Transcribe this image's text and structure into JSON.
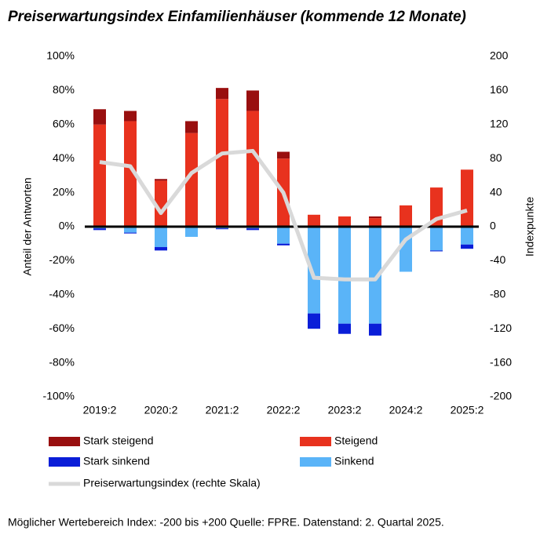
{
  "chart_data": {
    "type": "bar",
    "title": "Preiserwartungsindex Einfamilienhäuser (kommende 12 Monate)",
    "ylabel": "Anteil der Antworten",
    "y2label": "Indexpunkte",
    "note": "Möglicher Wertebereich Index: -200 bis +200 Quelle: FPRE. Datenstand: 2. Quartal 2025.",
    "categories": [
      "2019:2",
      null,
      "2020:2",
      null,
      "2021:2",
      null,
      "2022:2",
      null,
      "2023:2",
      null,
      "2024:2",
      null,
      "2025:2"
    ],
    "series": [
      {
        "name": "Stark steigend",
        "color": "#990f0f",
        "values": [
          9,
          6,
          1,
          7,
          6.5,
          12,
          4,
          0,
          0,
          1,
          0,
          0,
          0
        ]
      },
      {
        "name": "Steigend",
        "color": "#e8321e",
        "values": [
          60,
          62,
          27,
          55,
          75,
          68,
          40,
          7,
          6,
          5,
          12.5,
          23,
          33.5
        ]
      },
      {
        "name": "Stark sinkend",
        "color": "#0a1ed8",
        "values": [
          -1,
          -0.5,
          -2,
          0,
          -0.5,
          -1,
          -1,
          -9,
          -6,
          -7,
          0,
          -0.5,
          -2.5
        ]
      },
      {
        "name": "Sinkend",
        "color": "#5ab4f8",
        "values": [
          -1,
          -3.5,
          -12,
          -6,
          -1,
          -1,
          -10,
          -51,
          -57,
          -57,
          -26.5,
          -14,
          -10.5
        ]
      },
      {
        "name": "Preiserwartungsindex (rechte Skala)",
        "type": "line",
        "axis": "y2",
        "color": "#d9d9d9",
        "values": [
          76,
          71,
          16,
          63,
          86,
          89,
          40,
          -60,
          -62,
          -62,
          -15,
          9,
          19
        ]
      }
    ],
    "ylim": [
      -100,
      100
    ],
    "yticks": [
      {
        "value": -100,
        "label": "-100%"
      },
      {
        "value": -80,
        "label": "-80%"
      },
      {
        "value": -60,
        "label": "-60%"
      },
      {
        "value": -40,
        "label": "-40%"
      },
      {
        "value": -20,
        "label": "-20%"
      },
      {
        "value": 0,
        "label": "0%"
      },
      {
        "value": 20,
        "label": "20%"
      },
      {
        "value": 40,
        "label": "40%"
      },
      {
        "value": 60,
        "label": "60%"
      },
      {
        "value": 80,
        "label": "80%"
      },
      {
        "value": 100,
        "label": "100%"
      }
    ],
    "y2lim": [
      -200,
      200
    ],
    "y2ticks": [
      -200,
      -160,
      -120,
      -80,
      -40,
      0,
      40,
      80,
      120,
      160,
      200
    ]
  }
}
